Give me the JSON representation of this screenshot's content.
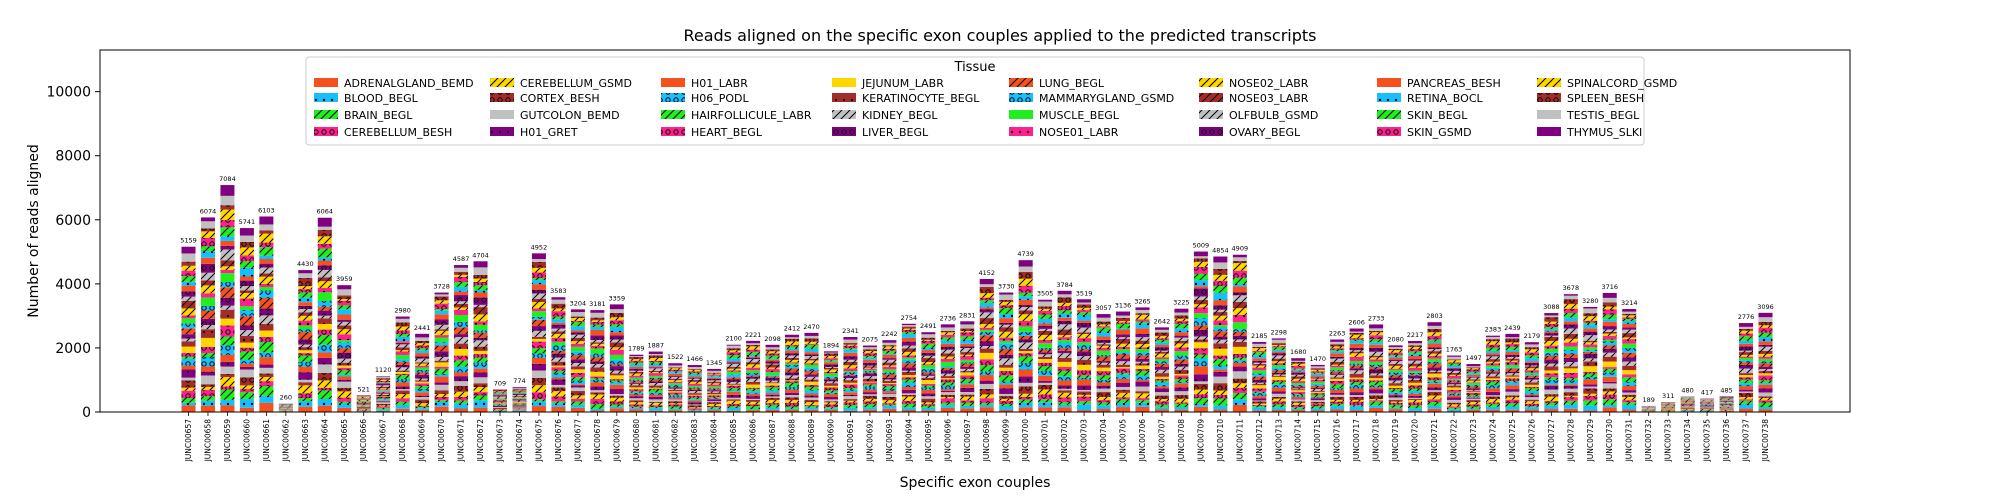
{
  "chart_data": {
    "type": "bar",
    "stacked": true,
    "title": "Reads aligned on the specific exon couples applied to the predicted transcripts",
    "xlabel": "Specific exon couples",
    "ylabel": "Number of reads aligned",
    "ylim": [
      0,
      11300
    ],
    "yticks": [
      0,
      2000,
      4000,
      6000,
      8000,
      10000
    ],
    "grid": false,
    "legend": {
      "title": "Tissue",
      "placement": "top-center",
      "columns": 8,
      "entries": [
        {
          "name": "ADRENALGLAND_BEMD",
          "color": "#f4511e",
          "hatch": "none"
        },
        {
          "name": "BLOOD_BEGL",
          "color": "#17bfff",
          "hatch": "dot"
        },
        {
          "name": "BRAIN_BEGL",
          "color": "#1fee1f",
          "hatch": "slash"
        },
        {
          "name": "CEREBELLUM_BESH",
          "color": "#ff1f8e",
          "hatch": "circle"
        },
        {
          "name": "CEREBELLUM_GSMD",
          "color": "#ffd700",
          "hatch": "slash"
        },
        {
          "name": "CORTEX_BESH",
          "color": "#a52a2a",
          "hatch": "circle"
        },
        {
          "name": "GUTCOLON_BEMD",
          "color": "#c0c0c0",
          "hatch": "none"
        },
        {
          "name": "H01_GRET",
          "color": "#800080",
          "hatch": "dot"
        },
        {
          "name": "H01_LABR",
          "color": "#f4511e",
          "hatch": "none"
        },
        {
          "name": "H06_PODL",
          "color": "#17bfff",
          "hatch": "circle"
        },
        {
          "name": "HAIRFOLLICULE_LABR",
          "color": "#1fee1f",
          "hatch": "slash"
        },
        {
          "name": "HEART_BEGL",
          "color": "#ff1f8e",
          "hatch": "circle"
        },
        {
          "name": "JEJUNUM_LABR",
          "color": "#ffd700",
          "hatch": "none"
        },
        {
          "name": "KERATINOCYTE_BEGL",
          "color": "#a52a2a",
          "hatch": "dot"
        },
        {
          "name": "KIDNEY_BEGL",
          "color": "#c0c0c0",
          "hatch": "slash"
        },
        {
          "name": "LIVER_BEGL",
          "color": "#800080",
          "hatch": "circle"
        },
        {
          "name": "LUNG_BEGL",
          "color": "#f4511e",
          "hatch": "slash"
        },
        {
          "name": "MAMMARYGLAND_GSMD",
          "color": "#17bfff",
          "hatch": "circle"
        },
        {
          "name": "MUSCLE_BEGL",
          "color": "#1fee1f",
          "hatch": "none"
        },
        {
          "name": "NOSE01_LABR",
          "color": "#ff1f8e",
          "hatch": "dot"
        },
        {
          "name": "NOSE02_LABR",
          "color": "#ffd700",
          "hatch": "slash"
        },
        {
          "name": "NOSE03_LABR",
          "color": "#a52a2a",
          "hatch": "slash"
        },
        {
          "name": "OLFBULB_GSMD",
          "color": "#c0c0c0",
          "hatch": "slash"
        },
        {
          "name": "OVARY_BEGL",
          "color": "#800080",
          "hatch": "circle"
        },
        {
          "name": "PANCREAS_BESH",
          "color": "#f4511e",
          "hatch": "none"
        },
        {
          "name": "RETINA_BOCL",
          "color": "#17bfff",
          "hatch": "dot"
        },
        {
          "name": "SKIN_BEGL",
          "color": "#1fee1f",
          "hatch": "slash"
        },
        {
          "name": "SKIN_GSMD",
          "color": "#ff1f8e",
          "hatch": "circle"
        },
        {
          "name": "SPINALCORD_GSMD",
          "color": "#ffd700",
          "hatch": "slash"
        },
        {
          "name": "SPLEEN_BESH",
          "color": "#a52a2a",
          "hatch": "circle"
        },
        {
          "name": "TESTIS_BEGL",
          "color": "#c0c0c0",
          "hatch": "none"
        },
        {
          "name": "THYMUS_SLKI",
          "color": "#800080",
          "hatch": "none"
        }
      ]
    },
    "categories": [
      "JUNC00657",
      "JUNC00658",
      "JUNC00659",
      "JUNC00660",
      "JUNC00661",
      "JUNC00662",
      "JUNC00663",
      "JUNC00664",
      "JUNC00665",
      "JUNC00666",
      "JUNC00667",
      "JUNC00668",
      "JUNC00669",
      "JUNC00670",
      "JUNC00671",
      "JUNC00672",
      "JUNC00673",
      "JUNC00674",
      "JUNC00675",
      "JUNC00676",
      "JUNC00677",
      "JUNC00678",
      "JUNC00679",
      "JUNC00680",
      "JUNC00681",
      "JUNC00682",
      "JUNC00683",
      "JUNC00684",
      "JUNC00685",
      "JUNC00686",
      "JUNC00687",
      "JUNC00688",
      "JUNC00689",
      "JUNC00690",
      "JUNC00691",
      "JUNC00692",
      "JUNC00693",
      "JUNC00694",
      "JUNC00695",
      "JUNC00696",
      "JUNC00697",
      "JUNC00698",
      "JUNC00699",
      "JUNC00700",
      "JUNC00701",
      "JUNC00702",
      "JUNC00703",
      "JUNC00704",
      "JUNC00705",
      "JUNC00706",
      "JUNC00707",
      "JUNC00708",
      "JUNC00709",
      "JUNC00710",
      "JUNC00711",
      "JUNC00712",
      "JUNC00713",
      "JUNC00714",
      "JUNC00715",
      "JUNC00716",
      "JUNC00717",
      "JUNC00718",
      "JUNC00719",
      "JUNC00720",
      "JUNC00721",
      "JUNC00722",
      "JUNC00723",
      "JUNC00724",
      "JUNC00725",
      "JUNC00726",
      "JUNC00727",
      "JUNC00728",
      "JUNC00729",
      "JUNC00730",
      "JUNC00731",
      "JUNC00732",
      "JUNC00733",
      "JUNC00734",
      "JUNC00735",
      "JUNC00736",
      "JUNC00737",
      "JUNC00738"
    ],
    "totals": [
      5159,
      6074,
      7084,
      5741,
      6103,
      260,
      4430,
      6064,
      3959,
      521,
      1120,
      2980,
      2441,
      3728,
      4587,
      4704,
      709,
      774,
      4952,
      3583,
      3204,
      3181,
      3359,
      1789,
      1887,
      1522,
      1466,
      1345,
      2100,
      2221,
      2098,
      2412,
      2470,
      1894,
      2341,
      2075,
      2242,
      2754,
      2491,
      2736,
      2831,
      4152,
      3730,
      4739,
      3505,
      3784,
      3519,
      3057,
      3136,
      3265,
      2642,
      3225,
      5009,
      4854,
      4909,
      2185,
      2298,
      1680,
      1470,
      2263,
      2606,
      2733,
      2080,
      2217,
      2803,
      1763,
      1497,
      2383,
      2439,
      2179,
      3088,
      3678,
      3280,
      3716,
      3214,
      189,
      311,
      480,
      417,
      485,
      2776,
      3096
    ]
  }
}
